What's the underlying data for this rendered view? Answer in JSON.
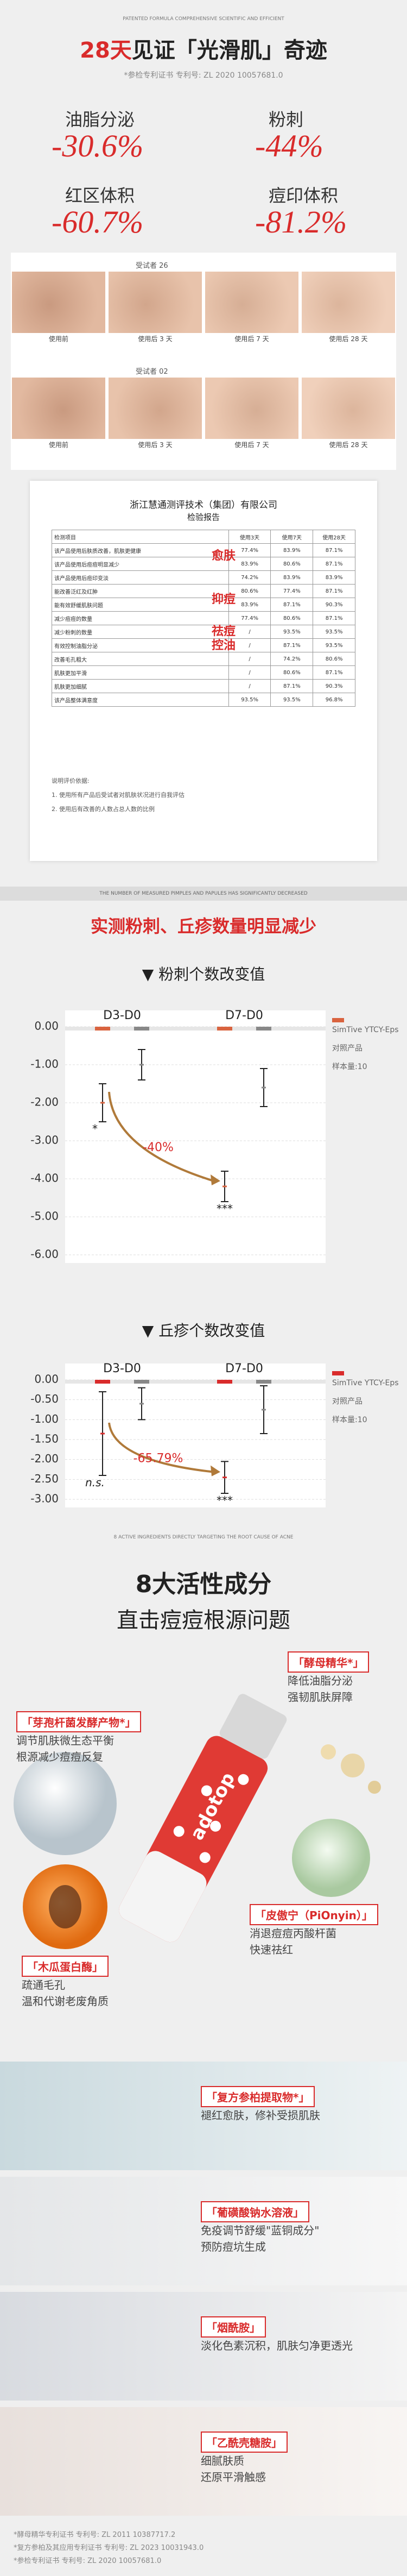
{
  "header": {
    "tagline": "PATENTED FORMULA COMPREHENSIVE SCIENTIFIC AND EFFICIENT",
    "title_highlight": "28天",
    "title": "见证「光滑肌」奇迹",
    "patent": "*参检专利证书 专利号: ZL 2020 10057681.0"
  },
  "stats": [
    {
      "label": "油脂分泌",
      "value": "-30.6%"
    },
    {
      "label": "粉刺",
      "value": "-44%"
    },
    {
      "label": "红区体积",
      "value": "-60.7%"
    },
    {
      "label": "痘印体积",
      "value": "-81.2%"
    }
  ],
  "subjects": [
    {
      "name": "受试者 26",
      "photos": [
        "使用前",
        "使用后 3 天",
        "使用后 7 天",
        "使用后 28 天"
      ]
    },
    {
      "name": "受试者 02",
      "photos": [
        "使用前",
        "使用后 3 天",
        "使用后 7 天",
        "使用后 28 天"
      ]
    }
  ],
  "report": {
    "company": "浙江慧通测评技术（集团）有限公司",
    "title": "检验报告",
    "columns": [
      "检测项目",
      "使用3天",
      "使用7天",
      "使用28天"
    ],
    "rows": [
      [
        "该产品使用后肤质改善，肌肤更健康",
        "77.4%",
        "83.9%",
        "87.1%"
      ],
      [
        "该产品使用后痘痘明显减少",
        "83.9%",
        "80.6%",
        "87.1%"
      ],
      [
        "该产品使用后痘印变淡",
        "74.2%",
        "83.9%",
        "83.9%"
      ],
      [
        "能改善泛红及红肿",
        "80.6%",
        "77.4%",
        "87.1%"
      ],
      [
        "能有效舒缓肌肤问题",
        "83.9%",
        "87.1%",
        "90.3%"
      ],
      [
        "减少痘痘的数量",
        "77.4%",
        "80.6%",
        "87.1%"
      ],
      [
        "减少粉刺的数量",
        "/",
        "93.5%",
        "93.5%"
      ],
      [
        "有效控制油脂分泌",
        "/",
        "87.1%",
        "93.5%"
      ],
      [
        "改善毛孔粗大",
        "/",
        "74.2%",
        "80.6%"
      ],
      [
        "肌肤更加平滑",
        "/",
        "80.6%",
        "87.1%"
      ],
      [
        "肌肤更加细腻",
        "/",
        "87.1%",
        "90.3%"
      ],
      [
        "该产品整体满意度",
        "93.5%",
        "93.5%",
        "96.8%"
      ]
    ],
    "tags": [
      "愈肤",
      "抑痘",
      "祛痘控油"
    ],
    "notes": [
      "说明评价依据:",
      "1. 使用所有产品后受试者对肌肤状况进行自我评估",
      "2. 使用后有改善的人数占总人数的比例"
    ]
  },
  "banner": "THE NUMBER OF MEASURED PIMPLES AND PAPULES HAS SIGNIFICANTLY DECREASED",
  "section_title": "实测粉刺、丘疹数量明显减少",
  "chart_data": [
    {
      "type": "errorbar",
      "title": "粉刺个数改变值",
      "categories": [
        "D3-D0",
        "D7-D0"
      ],
      "series": [
        {
          "name": "SimTive YTCY-Eps",
          "color": "#d9633f",
          "values": [
            -2.0,
            -4.2
          ],
          "errors": [
            0.5,
            0.4
          ],
          "significance": [
            "*",
            "***"
          ]
        },
        {
          "name": "对照产品",
          "color": "#888888",
          "values": [
            -1.0,
            -1.6
          ],
          "errors": [
            0.4,
            0.5
          ]
        }
      ],
      "ylim": [
        -6,
        0
      ],
      "yticks": [
        {
          "value": 0,
          "label": "0.00"
        },
        {
          "value": -1,
          "label": "-1.00"
        },
        {
          "value": -2,
          "label": "-2.00"
        },
        {
          "value": -3,
          "label": "-3.00"
        },
        {
          "value": -4,
          "label": "-4.00"
        },
        {
          "value": -5,
          "label": "-5.00"
        },
        {
          "value": -6,
          "label": "-6.00"
        }
      ],
      "annotation": "-40%",
      "sample_size": "样本量:10"
    },
    {
      "type": "errorbar",
      "title": "丘疹个数改变值",
      "categories": [
        "D3-D0",
        "D7-D0"
      ],
      "series": [
        {
          "name": "SimTive YTCY-Eps",
          "color": "#d92b2b",
          "values": [
            -1.35,
            -2.45
          ],
          "errors": [
            1.05,
            0.4
          ],
          "significance": [
            "n.s.",
            "***"
          ]
        },
        {
          "name": "对照产品",
          "color": "#888888",
          "values": [
            -0.6,
            -0.75
          ],
          "errors": [
            0.4,
            0.6
          ]
        }
      ],
      "ylim": [
        -3,
        0
      ],
      "yticks": [
        {
          "value": 0,
          "label": "0.00"
        },
        {
          "value": -0.5,
          "label": "-0.50"
        },
        {
          "value": -1,
          "label": "-1.00"
        },
        {
          "value": -1.5,
          "label": "-1.50"
        },
        {
          "value": -2,
          "label": "-2.00"
        },
        {
          "value": -2.5,
          "label": "-2.50"
        },
        {
          "value": -3,
          "label": "-3.00"
        }
      ],
      "annotation": "-65.79%",
      "sample_size": "样本量:10"
    }
  ],
  "ingredients": {
    "tagline": "8 ACTIVE INGREDIENTS DIRECTLY TARGETING THE ROOT CAUSE OF ACNE",
    "title": "8大活性成分",
    "subtitle": "直击痘痘根源问题",
    "brand": "adotop",
    "featured": [
      {
        "name": "「酵母精华*」",
        "desc": [
          "降低油脂分泌",
          "强韧肌肤屏障"
        ]
      },
      {
        "name": "「芽孢杆菌发酵产物*」",
        "desc": [
          "调节肌肤微生态平衡",
          "根源减少痘痘反复"
        ]
      },
      {
        "name": "「木瓜蛋白酶」",
        "desc": [
          "疏通毛孔",
          "温和代谢老废角质"
        ]
      },
      {
        "name": "「皮傲宁（PiOnyin）」",
        "desc": [
          "消退痘痘丙酸杆菌",
          "快速祛红"
        ]
      }
    ],
    "list": [
      {
        "name": "「复方参柏提取物*」",
        "desc": [
          "褪红愈肤，修补受损肌肤"
        ]
      },
      {
        "name": "「葡磺酸钠水溶液」",
        "desc": [
          "免疫调节舒缓\"蓝铜成分\"",
          "预防痘坑生成"
        ]
      },
      {
        "name": "「烟酰胺」",
        "desc": [
          "淡化色素沉积，肌肤匀净更透光"
        ]
      },
      {
        "name": "「乙酰壳糖胺」",
        "desc": [
          "细腻肤质",
          "还原平滑触感"
        ]
      }
    ]
  },
  "footnotes": [
    "*酵母精华专利证书 专利号: ZL 2011 10387717.2",
    "*复方参柏及其应用专利证书 专利号: ZL 2023 10031943.0",
    "*参检专利证书 专利号: ZL 2020 10057681.0"
  ]
}
